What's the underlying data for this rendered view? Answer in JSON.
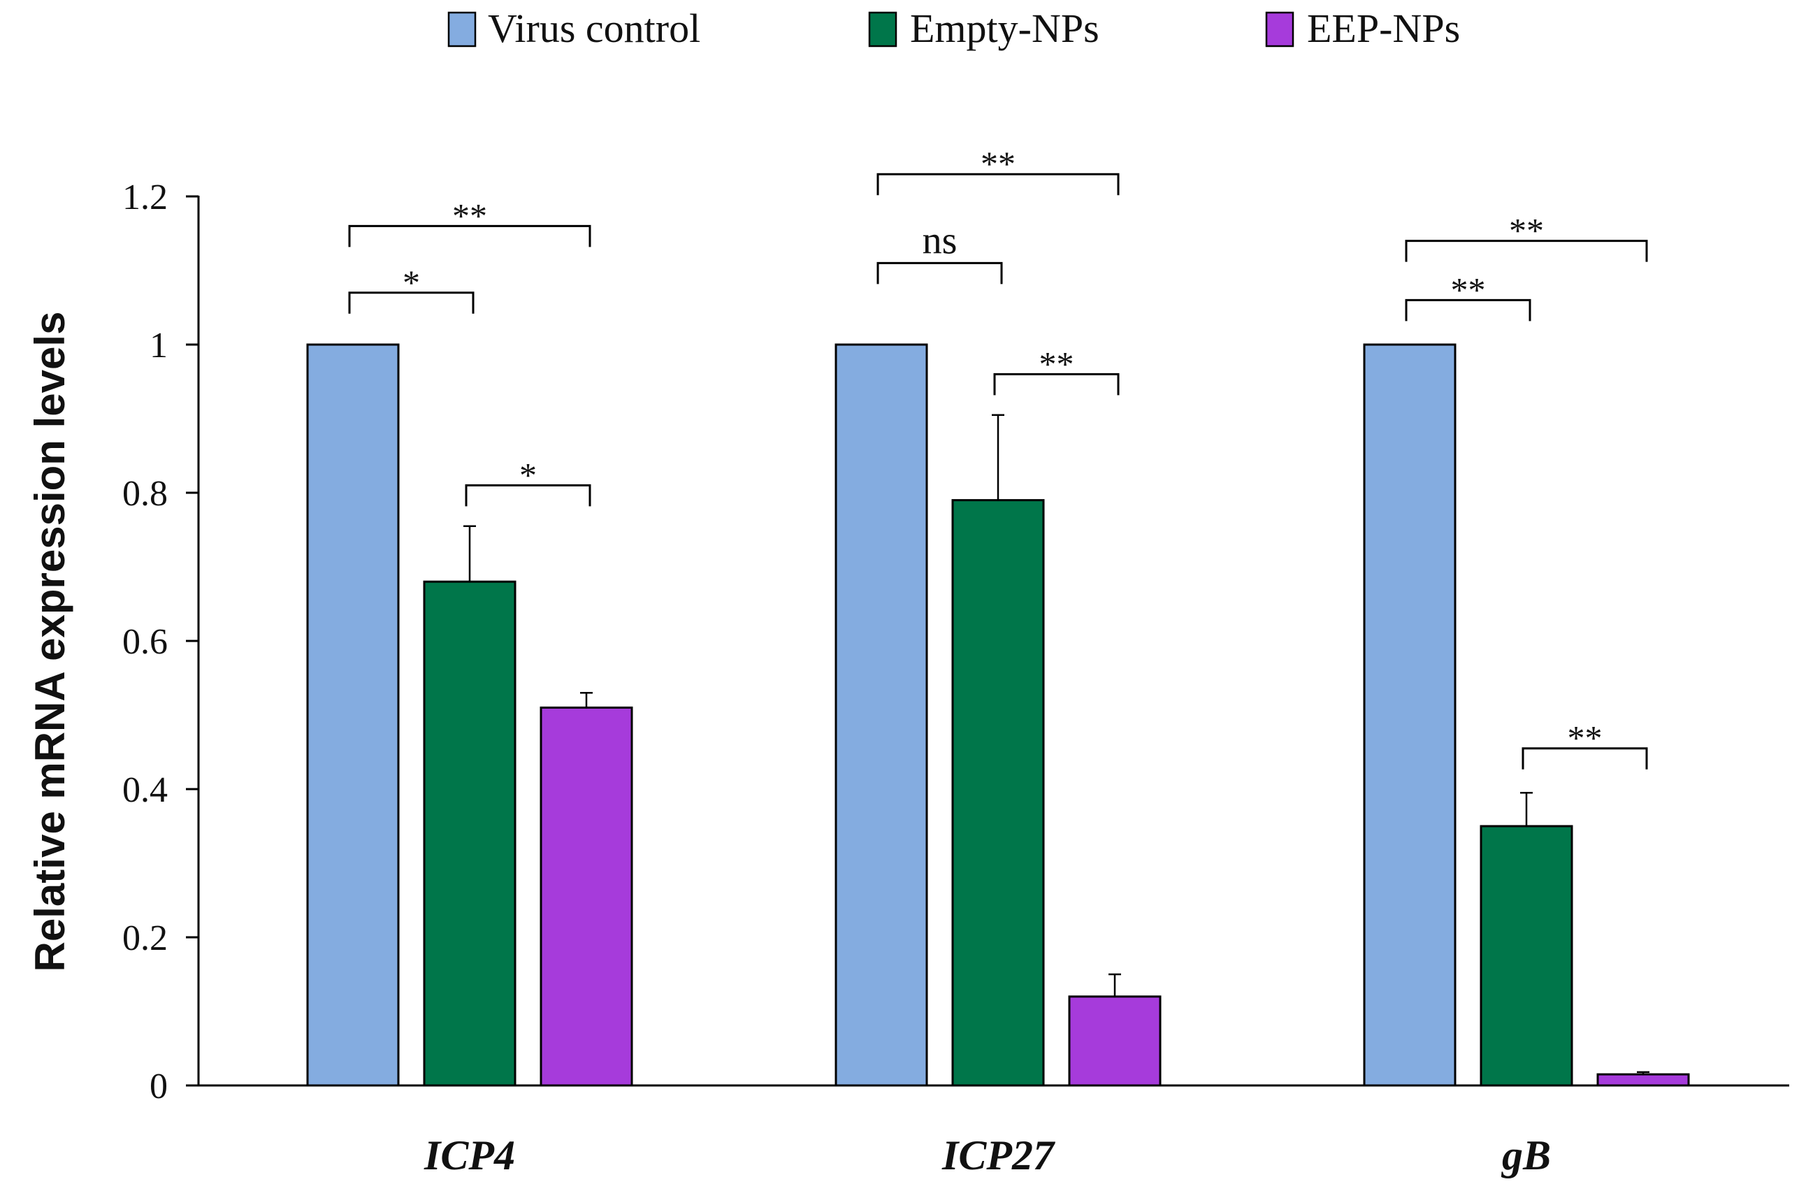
{
  "chart_data": {
    "type": "bar",
    "title": "",
    "xlabel": "",
    "ylabel": "Relative mRNA expression levels",
    "ylim": [
      0,
      1.2
    ],
    "yticks": [
      0,
      0.2,
      0.4,
      0.6,
      0.8,
      1,
      1.2
    ],
    "ytick_labels": [
      "0",
      "0.2",
      "0.4",
      "0.6",
      "0.8",
      "1",
      "1.2"
    ],
    "grid": false,
    "legend_position": "top-center",
    "categories": [
      "ICP4",
      "ICP27",
      "gB"
    ],
    "series": [
      {
        "name": "Virus control",
        "color": "#84ACE0",
        "values": [
          1.0,
          1.0,
          1.0
        ],
        "errors": [
          0,
          0,
          0
        ]
      },
      {
        "name": "Empty-NPs",
        "color": "#00764A",
        "values": [
          0.68,
          0.79,
          0.35
        ],
        "errors": [
          0.075,
          0.115,
          0.045
        ]
      },
      {
        "name": "EEP-NPs",
        "color": "#A63BDB",
        "values": [
          0.51,
          0.12,
          0.015
        ],
        "errors": [
          0.02,
          0.03,
          0.003
        ]
      }
    ],
    "significance": [
      {
        "category": "ICP4",
        "from_series": 0,
        "to_series": 1,
        "label": "*",
        "y": 1.07
      },
      {
        "category": "ICP4",
        "from_series": 0,
        "to_series": 2,
        "label": "**",
        "y": 1.16
      },
      {
        "category": "ICP4",
        "from_series": 1,
        "to_series": 2,
        "label": "*",
        "y": 0.81
      },
      {
        "category": "ICP27",
        "from_series": 0,
        "to_series": 1,
        "label": "ns",
        "y": 1.11
      },
      {
        "category": "ICP27",
        "from_series": 0,
        "to_series": 2,
        "label": "**",
        "y": 1.23
      },
      {
        "category": "ICP27",
        "from_series": 1,
        "to_series": 2,
        "label": "**",
        "y": 0.96
      },
      {
        "category": "gB",
        "from_series": 0,
        "to_series": 1,
        "label": "**",
        "y": 1.06
      },
      {
        "category": "gB",
        "from_series": 0,
        "to_series": 2,
        "label": "**",
        "y": 1.14
      },
      {
        "category": "gB",
        "from_series": 1,
        "to_series": 2,
        "label": "**",
        "y": 0.455
      }
    ]
  }
}
